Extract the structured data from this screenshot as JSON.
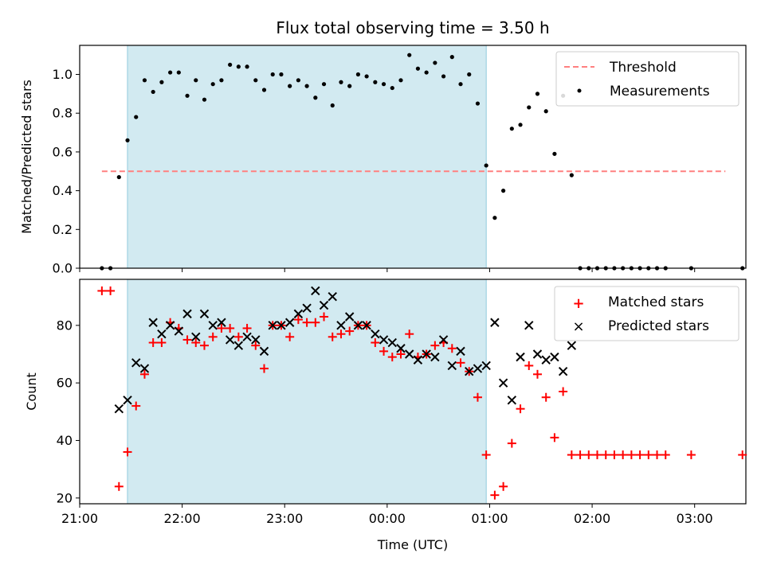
{
  "title": "Flux total observing time = 3.50 h",
  "x_axis": {
    "label": "Time (UTC)",
    "range": [
      "21:00",
      "03:30"
    ],
    "ticks": [
      "21:00",
      "22:00",
      "23:00",
      "00:00",
      "01:00",
      "02:00",
      "03:00"
    ]
  },
  "observing_window": {
    "start": "21:28",
    "end": "00:58",
    "color": "#add8e6"
  },
  "chart_data": [
    {
      "type": "scatter",
      "ylabel": "Matched/Predicted stars",
      "ylim": [
        0,
        1.15
      ],
      "yticks": [
        "0.0",
        "0.2",
        "0.4",
        "0.6",
        "0.8",
        "1.0"
      ],
      "legend": {
        "placement": "top-right",
        "entries": [
          "Threshold",
          "Measurements"
        ]
      },
      "threshold": {
        "name": "Threshold",
        "value": 0.5,
        "x": [
          "21:13",
          "03:18"
        ],
        "color": "#ff8080"
      },
      "series": [
        {
          "name": "Measurements",
          "color": "#000000",
          "marker": "dot",
          "points": [
            [
              "21:13",
              0.0
            ],
            [
              "21:18",
              0.0
            ],
            [
              "21:23",
              0.47
            ],
            [
              "21:28",
              0.66
            ],
            [
              "21:33",
              0.78
            ],
            [
              "21:38",
              0.97
            ],
            [
              "21:43",
              0.91
            ],
            [
              "21:48",
              0.96
            ],
            [
              "21:53",
              1.01
            ],
            [
              "21:58",
              1.01
            ],
            [
              "22:03",
              0.89
            ],
            [
              "22:08",
              0.97
            ],
            [
              "22:13",
              0.87
            ],
            [
              "22:18",
              0.95
            ],
            [
              "22:23",
              0.97
            ],
            [
              "22:28",
              1.05
            ],
            [
              "22:33",
              1.04
            ],
            [
              "22:38",
              1.04
            ],
            [
              "22:43",
              0.97
            ],
            [
              "22:48",
              0.92
            ],
            [
              "22:53",
              1.0
            ],
            [
              "22:58",
              1.0
            ],
            [
              "23:03",
              0.94
            ],
            [
              "23:08",
              0.97
            ],
            [
              "23:13",
              0.94
            ],
            [
              "23:18",
              0.88
            ],
            [
              "23:23",
              0.95
            ],
            [
              "23:28",
              0.84
            ],
            [
              "23:33",
              0.96
            ],
            [
              "23:38",
              0.94
            ],
            [
              "23:43",
              1.0
            ],
            [
              "23:48",
              0.99
            ],
            [
              "23:53",
              0.96
            ],
            [
              "23:58",
              0.95
            ],
            [
              "00:03",
              0.93
            ],
            [
              "00:08",
              0.97
            ],
            [
              "00:13",
              1.1
            ],
            [
              "00:18",
              1.03
            ],
            [
              "00:23",
              1.01
            ],
            [
              "00:28",
              1.06
            ],
            [
              "00:33",
              0.99
            ],
            [
              "00:38",
              1.09
            ],
            [
              "00:43",
              0.95
            ],
            [
              "00:48",
              1.0
            ],
            [
              "00:53",
              0.85
            ],
            [
              "00:58",
              0.53
            ],
            [
              "01:03",
              0.26
            ],
            [
              "01:08",
              0.4
            ],
            [
              "01:13",
              0.72
            ],
            [
              "01:18",
              0.74
            ],
            [
              "01:23",
              0.83
            ],
            [
              "01:28",
              0.9
            ],
            [
              "01:33",
              0.81
            ],
            [
              "01:38",
              0.59
            ],
            [
              "01:43",
              0.89
            ],
            [
              "01:48",
              0.48
            ],
            [
              "01:53",
              0.0
            ],
            [
              "01:58",
              0.0
            ],
            [
              "02:03",
              0.0
            ],
            [
              "02:08",
              0.0
            ],
            [
              "02:13",
              0.0
            ],
            [
              "02:18",
              0.0
            ],
            [
              "02:23",
              0.0
            ],
            [
              "02:28",
              0.0
            ],
            [
              "02:33",
              0.0
            ],
            [
              "02:38",
              0.0
            ],
            [
              "02:43",
              0.0
            ],
            [
              "02:58",
              0.0
            ],
            [
              "03:28",
              0.0
            ]
          ]
        }
      ]
    },
    {
      "type": "scatter",
      "ylabel": "Count",
      "ylim": [
        18,
        96
      ],
      "yticks": [
        "20",
        "40",
        "60",
        "80"
      ],
      "legend": {
        "placement": "top-right",
        "entries": [
          "Matched stars",
          "Predicted stars"
        ]
      },
      "series": [
        {
          "name": "Matched stars",
          "color": "#ff0000",
          "marker": "plus",
          "points": [
            [
              "21:13",
              92
            ],
            [
              "21:18",
              92
            ],
            [
              "21:23",
              24
            ],
            [
              "21:28",
              36
            ],
            [
              "21:33",
              52
            ],
            [
              "21:38",
              63
            ],
            [
              "21:43",
              74
            ],
            [
              "21:48",
              74
            ],
            [
              "21:53",
              81
            ],
            [
              "21:58",
              79
            ],
            [
              "22:03",
              75
            ],
            [
              "22:08",
              74
            ],
            [
              "22:13",
              73
            ],
            [
              "22:18",
              76
            ],
            [
              "22:23",
              79
            ],
            [
              "22:28",
              79
            ],
            [
              "22:33",
              76
            ],
            [
              "22:38",
              79
            ],
            [
              "22:43",
              73
            ],
            [
              "22:48",
              65
            ],
            [
              "22:53",
              80
            ],
            [
              "22:58",
              80
            ],
            [
              "23:03",
              76
            ],
            [
              "23:08",
              82
            ],
            [
              "23:13",
              81
            ],
            [
              "23:18",
              81
            ],
            [
              "23:23",
              83
            ],
            [
              "23:28",
              76
            ],
            [
              "23:33",
              77
            ],
            [
              "23:38",
              78
            ],
            [
              "23:43",
              80
            ],
            [
              "23:48",
              80
            ],
            [
              "23:53",
              74
            ],
            [
              "23:58",
              71
            ],
            [
              "00:03",
              69
            ],
            [
              "00:08",
              70
            ],
            [
              "00:13",
              77
            ],
            [
              "00:18",
              69
            ],
            [
              "00:23",
              70
            ],
            [
              "00:28",
              73
            ],
            [
              "00:33",
              74
            ],
            [
              "00:38",
              72
            ],
            [
              "00:43",
              67
            ],
            [
              "00:48",
              64
            ],
            [
              "00:53",
              55
            ],
            [
              "00:58",
              35
            ],
            [
              "01:03",
              21
            ],
            [
              "01:08",
              24
            ],
            [
              "01:13",
              39
            ],
            [
              "01:18",
              51
            ],
            [
              "01:23",
              66
            ],
            [
              "01:28",
              63
            ],
            [
              "01:33",
              55
            ],
            [
              "01:38",
              41
            ],
            [
              "01:43",
              57
            ],
            [
              "01:48",
              35
            ],
            [
              "01:53",
              35
            ],
            [
              "01:58",
              35
            ],
            [
              "02:03",
              35
            ],
            [
              "02:08",
              35
            ],
            [
              "02:13",
              35
            ],
            [
              "02:18",
              35
            ],
            [
              "02:23",
              35
            ],
            [
              "02:28",
              35
            ],
            [
              "02:33",
              35
            ],
            [
              "02:38",
              35
            ],
            [
              "02:43",
              35
            ],
            [
              "02:58",
              35
            ],
            [
              "03:28",
              35
            ]
          ]
        },
        {
          "name": "Predicted stars",
          "color": "#000000",
          "marker": "x",
          "points": [
            [
              "21:23",
              51
            ],
            [
              "21:28",
              54
            ],
            [
              "21:33",
              67
            ],
            [
              "21:38",
              65
            ],
            [
              "21:43",
              81
            ],
            [
              "21:48",
              77
            ],
            [
              "21:53",
              80
            ],
            [
              "21:58",
              78
            ],
            [
              "22:03",
              84
            ],
            [
              "22:08",
              76
            ],
            [
              "22:13",
              84
            ],
            [
              "22:18",
              80
            ],
            [
              "22:23",
              81
            ],
            [
              "22:28",
              75
            ],
            [
              "22:33",
              73
            ],
            [
              "22:38",
              76
            ],
            [
              "22:43",
              75
            ],
            [
              "22:48",
              71
            ],
            [
              "22:53",
              80
            ],
            [
              "22:58",
              80
            ],
            [
              "23:03",
              81
            ],
            [
              "23:08",
              84
            ],
            [
              "23:13",
              86
            ],
            [
              "23:18",
              92
            ],
            [
              "23:23",
              87
            ],
            [
              "23:28",
              90
            ],
            [
              "23:33",
              80
            ],
            [
              "23:38",
              83
            ],
            [
              "23:43",
              80
            ],
            [
              "23:48",
              80
            ],
            [
              "23:53",
              77
            ],
            [
              "23:58",
              75
            ],
            [
              "00:03",
              74
            ],
            [
              "00:08",
              72
            ],
            [
              "00:13",
              70
            ],
            [
              "00:18",
              68
            ],
            [
              "00:23",
              70
            ],
            [
              "00:28",
              69
            ],
            [
              "00:33",
              75
            ],
            [
              "00:38",
              66
            ],
            [
              "00:43",
              71
            ],
            [
              "00:48",
              64
            ],
            [
              "00:53",
              65
            ],
            [
              "00:58",
              66
            ],
            [
              "01:03",
              81
            ],
            [
              "01:08",
              60
            ],
            [
              "01:13",
              54
            ],
            [
              "01:18",
              69
            ],
            [
              "01:23",
              80
            ],
            [
              "01:28",
              70
            ],
            [
              "01:33",
              68
            ],
            [
              "01:38",
              69
            ],
            [
              "01:43",
              64
            ],
            [
              "01:48",
              73
            ]
          ]
        }
      ]
    }
  ]
}
